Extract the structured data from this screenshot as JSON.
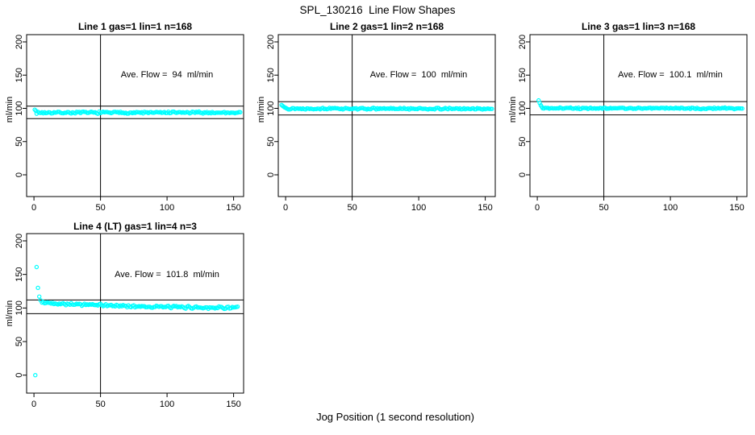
{
  "figure": {
    "title": "SPL_130216  Line Flow Shapes",
    "xlabel": "Jog Position (1 second resolution)",
    "background": "#FFFFFF",
    "point_color": "#00FFFF",
    "axis_color": "#000000"
  },
  "chart_data": {
    "type": "scatter",
    "title": "SPL_130216  Line Flow Shapes",
    "xlabel": "Jog Position (1 second resolution)",
    "ylabel": "ml/min",
    "marker": "open-circle",
    "grid": false,
    "x_ticks": [
      0,
      50,
      100,
      150
    ],
    "y_ticks": [
      0,
      50,
      100,
      150,
      200
    ],
    "x_range": [
      -5.5,
      157.5
    ],
    "y_range": [
      -30,
      211
    ],
    "subplots": [
      {
        "title": "Line 1 gas=1 lin=1 n=168",
        "annotation": "Ave. Flow =  94  ml/min",
        "ave_flow": 94,
        "n": 168,
        "ylabel": "ml/min",
        "vline_x": 50,
        "ref_lines": [
          103.4,
          84.6
        ],
        "transient_points": [
          [
            0.6,
            98.0
          ],
          [
            1.4,
            96.3
          ]
        ],
        "steady": {
          "from": 2,
          "to": 155.5,
          "step": 1,
          "y_start": 93.6,
          "y_end": 93.6,
          "noise": 1.8,
          "seed": 7
        }
      },
      {
        "title": "Line 2 gas=1 lin=2 n=168",
        "annotation": "Ave. Flow =  100  ml/min",
        "ave_flow": 100,
        "n": 168,
        "ylabel": "ml/min",
        "vline_x": 50,
        "ref_lines": [
          110,
          90
        ],
        "transient_points": [
          [
            -3,
            105.0
          ],
          [
            -2.2,
            103.6
          ],
          [
            -1.4,
            102.4
          ],
          [
            -0.6,
            101.3
          ],
          [
            0.2,
            100.6
          ]
        ],
        "steady": {
          "from": 1,
          "to": 155.5,
          "step": 1,
          "y_start": 99.7,
          "y_end": 99.4,
          "noise": 1.4,
          "seed": 13
        }
      },
      {
        "title": "Line 3 gas=1 lin=3 n=168",
        "annotation": "Ave. Flow =  100.1  ml/min",
        "ave_flow": 100.1,
        "n": 168,
        "ylabel": "ml/min",
        "vline_x": 50,
        "ref_lines": [
          110.1,
          90.1
        ],
        "transient_points": [
          [
            1,
            112.0
          ],
          [
            1.8,
            108.0
          ],
          [
            2.6,
            104.6
          ],
          [
            3.4,
            102.2
          ]
        ],
        "steady": {
          "from": 4,
          "to": 154,
          "step": 1,
          "y_start": 100.3,
          "y_end": 100.0,
          "noise": 1.4,
          "seed": 21
        }
      },
      {
        "title": "Line 4 (LT) gas=1 lin=4 n=3",
        "annotation": "Ave. Flow =  101.8  ml/min",
        "ave_flow": 101.8,
        "n": 3,
        "ylabel": "ml/min",
        "vline_x": 50,
        "ref_lines": [
          112,
          91.6
        ],
        "transient_points": [
          [
            1,
            0
          ],
          [
            2,
            161.0
          ],
          [
            3,
            130.0
          ],
          [
            4,
            117.0
          ],
          [
            5,
            111.5
          ]
        ],
        "steady": {
          "from": 6,
          "to": 153,
          "step": 1,
          "y_start": 108.0,
          "y_end": 100.6,
          "noise": 2.3,
          "seed": 42
        }
      }
    ]
  }
}
